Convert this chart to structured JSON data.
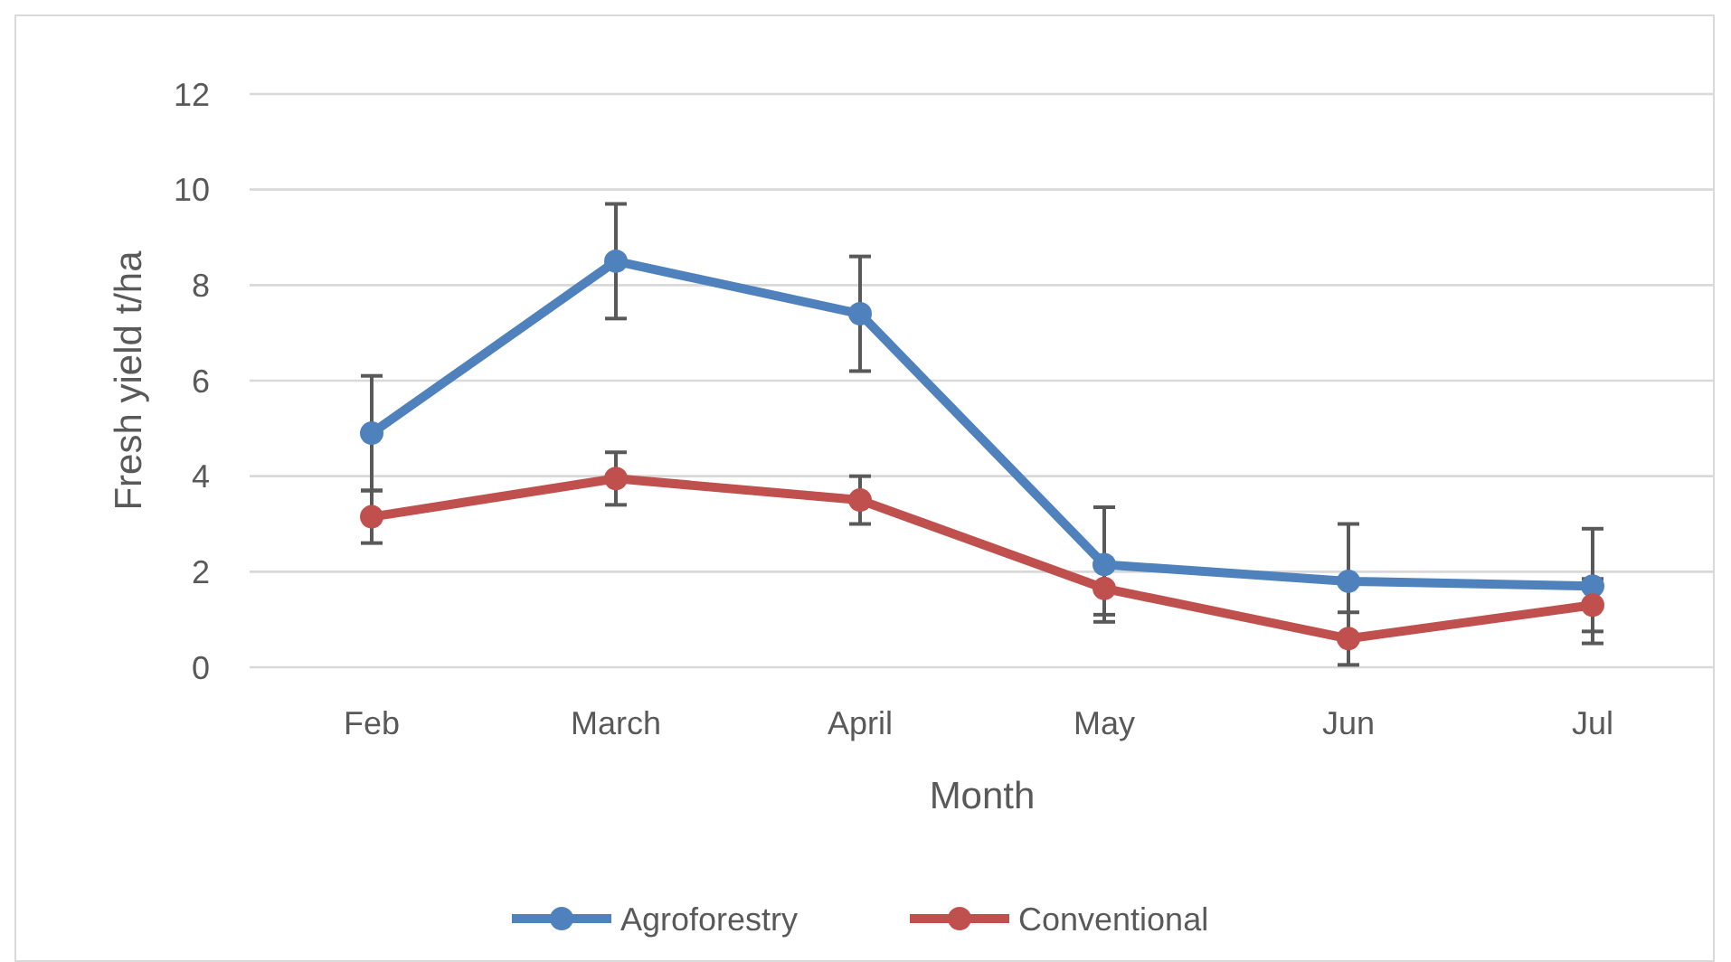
{
  "chart_data": {
    "type": "line",
    "xlabel": "Month",
    "ylabel": "Fresh yield t/ha",
    "categories": [
      "Feb",
      "March",
      "April",
      "May",
      "Jun",
      "Jul"
    ],
    "series": [
      {
        "name": "Agroforestry",
        "color": "#4f81bd",
        "values": [
          4.9,
          8.5,
          7.4,
          2.15,
          1.8,
          1.7
        ],
        "errors": [
          1.2,
          1.2,
          1.2,
          1.2,
          1.2,
          1.2
        ]
      },
      {
        "name": "Conventional",
        "color": "#c0504d",
        "values": [
          3.15,
          3.95,
          3.5,
          1.65,
          0.6,
          1.3
        ],
        "errors": [
          0.55,
          0.55,
          0.5,
          0.55,
          0.55,
          0.55
        ]
      }
    ],
    "ylim": [
      0,
      12
    ],
    "yticks": [
      0,
      2,
      4,
      6,
      8,
      10,
      12
    ],
    "grid": "y",
    "legend": "bottom",
    "marker": "circle",
    "line_style": "solid"
  }
}
